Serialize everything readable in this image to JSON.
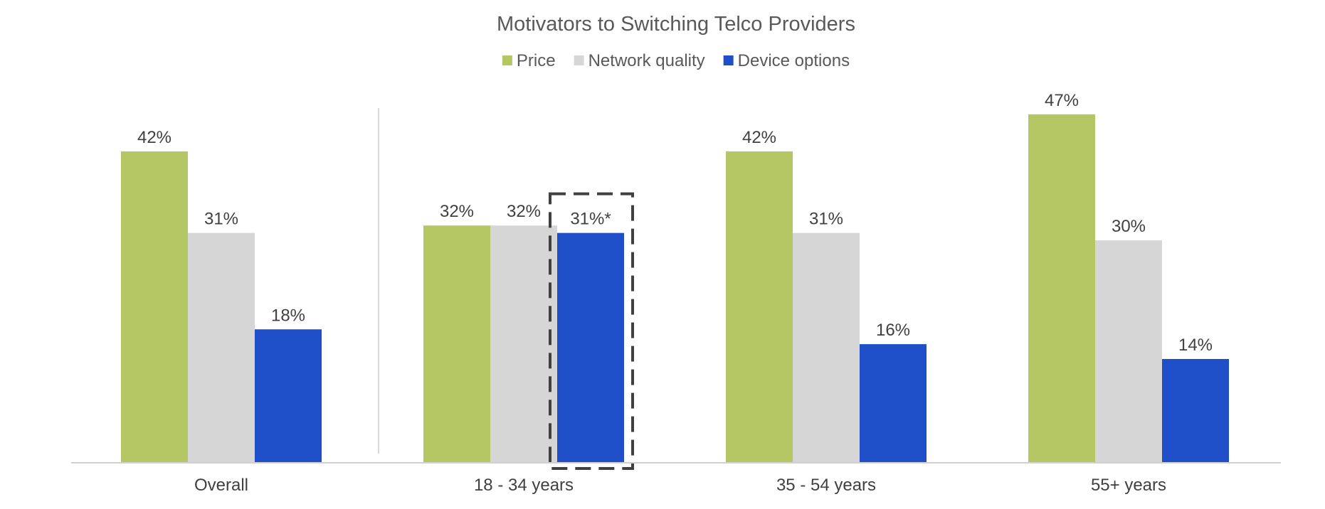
{
  "chart_data": {
    "type": "bar",
    "title": "Motivators to Switching Telco Providers",
    "xlabel": "",
    "ylabel": "",
    "ylim": [
      0,
      50
    ],
    "grid": false,
    "legend_position": "top",
    "categories": [
      "Overall",
      "18 - 34 years",
      "35 - 54 years",
      "55+ years"
    ],
    "series": [
      {
        "name": "Price",
        "color": "#b5c764",
        "values": [
          42,
          32,
          42,
          47
        ],
        "labels": [
          "42%",
          "32%",
          "42%",
          "47%"
        ]
      },
      {
        "name": "Network quality",
        "color": "#d6d6d6",
        "values": [
          31,
          32,
          31,
          30
        ],
        "labels": [
          "31%",
          "32%",
          "31%",
          "30%"
        ]
      },
      {
        "name": "Device options",
        "color": "#1f4fc8",
        "values": [
          18,
          31,
          16,
          14
        ],
        "labels": [
          "18%",
          "31%*",
          "16%",
          "14%"
        ]
      }
    ],
    "highlight": {
      "category_index": 1,
      "series_index": 2,
      "style": "dashed-box"
    },
    "separator_after_category": 0
  }
}
